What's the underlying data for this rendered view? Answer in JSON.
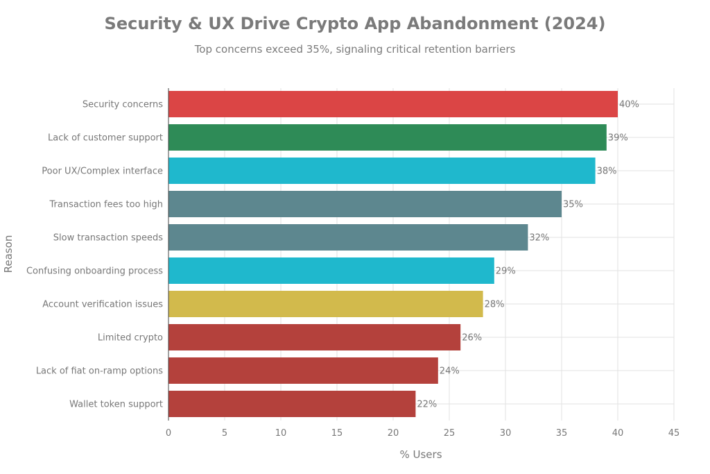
{
  "chart_data": {
    "type": "bar",
    "orientation": "horizontal",
    "title": "Security & UX Drive Crypto App Abandonment (2024)",
    "subtitle": "Top concerns exceed 35%, signaling critical retention barriers",
    "xlabel": "% Users",
    "ylabel": "Reason",
    "xlim": [
      0,
      45
    ],
    "xticks": [
      0,
      5,
      10,
      15,
      20,
      25,
      30,
      35,
      40,
      45
    ],
    "grid": true,
    "categories": [
      "Security concerns",
      "Lack of customer support",
      "Poor UX/Complex interface",
      "Transaction fees too high",
      "Slow transaction speeds",
      "Confusing onboarding process",
      "Account verification issues",
      "Limited crypto",
      "Lack of fiat on-ramp options",
      "Wallet token support"
    ],
    "values": [
      40,
      39,
      38,
      35,
      32,
      29,
      28,
      26,
      24,
      22
    ],
    "data_labels": [
      "40%",
      "39%",
      "38%",
      "35%",
      "32%",
      "29%",
      "28%",
      "26%",
      "24%",
      "22%"
    ],
    "colors": [
      "#DB4545",
      "#2E8B57",
      "#1FB8CD",
      "#5D878F",
      "#5D878F",
      "#1FB8CD",
      "#D2BA4C",
      "#B4413C",
      "#B4413C",
      "#B4413C"
    ]
  }
}
